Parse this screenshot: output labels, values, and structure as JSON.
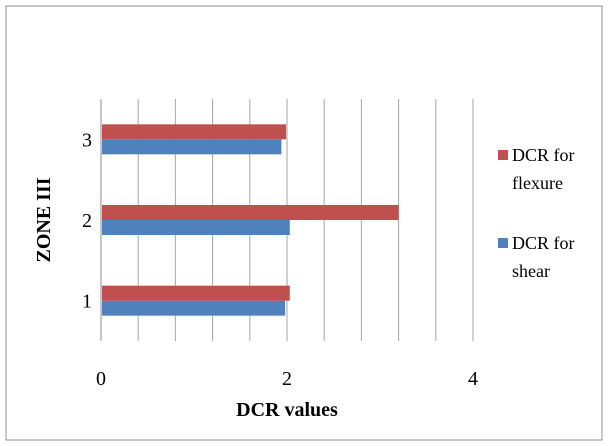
{
  "chart_data": {
    "type": "bar",
    "orientation": "horizontal",
    "categories": [
      "1",
      "2",
      "3"
    ],
    "series": [
      {
        "name": "DCR for shear",
        "values": [
          1.98,
          2.03,
          1.94
        ],
        "color": "#4f81bd"
      },
      {
        "name": "DCR for flexure",
        "values": [
          2.03,
          3.2,
          1.99
        ],
        "color": "#c0504d"
      }
    ],
    "xlabel": "DCR values",
    "ylabel": "ZONE III",
    "xlim": [
      0,
      4
    ],
    "x_ticks": [
      "0",
      "2",
      "4"
    ],
    "grid": "vertical minor",
    "legend": {
      "placement": "right",
      "entries": [
        {
          "line1": "DCR for",
          "line2": "flexure"
        },
        {
          "line1": "DCR for",
          "line2": "shear"
        }
      ]
    }
  }
}
